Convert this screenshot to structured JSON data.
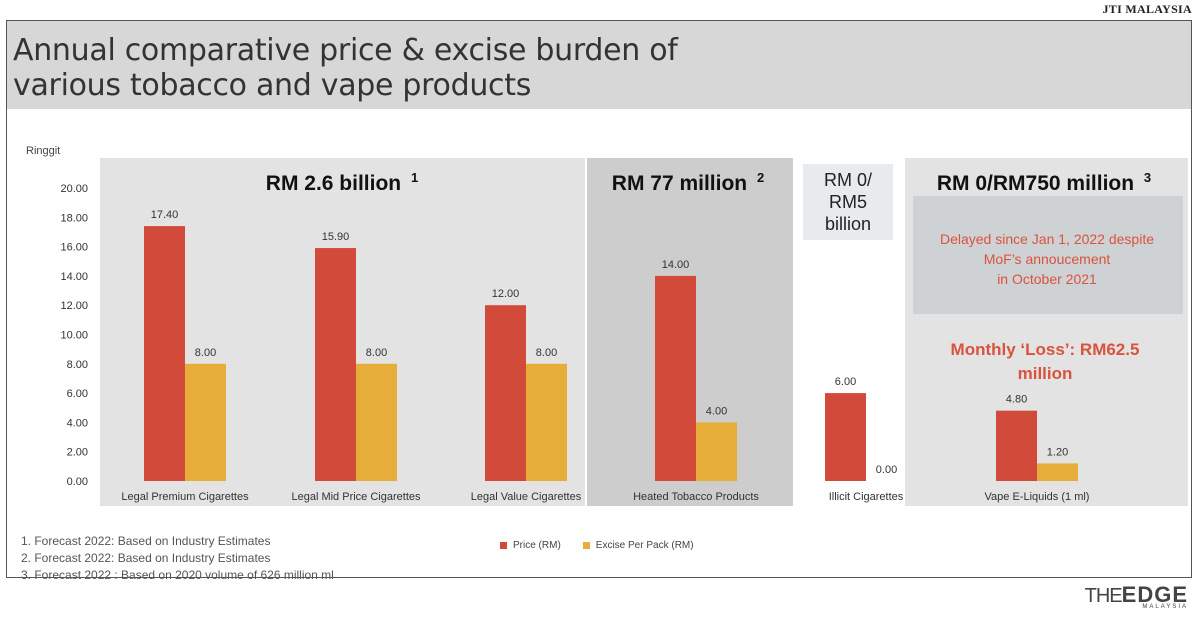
{
  "source_label": "JTI MALAYSIA",
  "title_line1": "Annual comparative price & excise burden of",
  "title_line2": "various tobacco and vape products",
  "colors": {
    "price": "#d24a3a",
    "excise": "#e6ad3a",
    "red_text": "#d9533d"
  },
  "chart_data": {
    "type": "bar",
    "ylabel": "Ringgit",
    "ylim": [
      0,
      20
    ],
    "yticks": [
      "0.00",
      "2.00",
      "4.00",
      "6.00",
      "8.00",
      "10.00",
      "12.00",
      "14.00",
      "16.00",
      "18.00",
      "20.00"
    ],
    "categories": [
      "Legal Premium Cigarettes",
      "Legal Mid Price Cigarettes",
      "Legal Value Cigarettes",
      "Heated Tobacco Products",
      "Illicit Cigarettes",
      "Vape E-Liquids (1 ml)"
    ],
    "series": [
      {
        "name": "Price (RM)",
        "values": [
          17.4,
          15.9,
          12.0,
          14.0,
          6.0,
          4.8
        ],
        "labels": [
          "17.40",
          "15.90",
          "12.00",
          "14.00",
          "6.00",
          "4.80"
        ]
      },
      {
        "name": "Excise Per Pack (RM)",
        "values": [
          8.0,
          8.0,
          8.0,
          4.0,
          0.0,
          1.2
        ],
        "labels": [
          "8.00",
          "8.00",
          "8.00",
          "4.00",
          "0.00",
          "1.20"
        ]
      }
    ],
    "annotations": {
      "legal": {
        "text": "RM 2.6 billion",
        "sup": "1"
      },
      "heated": {
        "text": "RM 77 million",
        "sup": "2"
      },
      "illicit": {
        "lines": [
          "RM 0/",
          "RM5",
          "billion"
        ]
      },
      "vape": {
        "text": "RM 0/RM750 million",
        "sup": "3"
      },
      "delayed": [
        "Delayed since Jan 1, 2022 despite",
        "MoF’s annoucement",
        "in October 2021"
      ],
      "loss": [
        "Monthly ‘Loss’: RM62.5",
        "million"
      ]
    }
  },
  "notes": [
    "1.   Forecast 2022: Based on Industry Estimates",
    "2.   Forecast 2022: Based on Industry Estimates",
    "3.   Forecast 2022 : Based on 2020 volume of 626 million ml"
  ],
  "logo": {
    "the": "THE",
    "edge": "EDGE",
    "country": "MALAYSIA"
  }
}
